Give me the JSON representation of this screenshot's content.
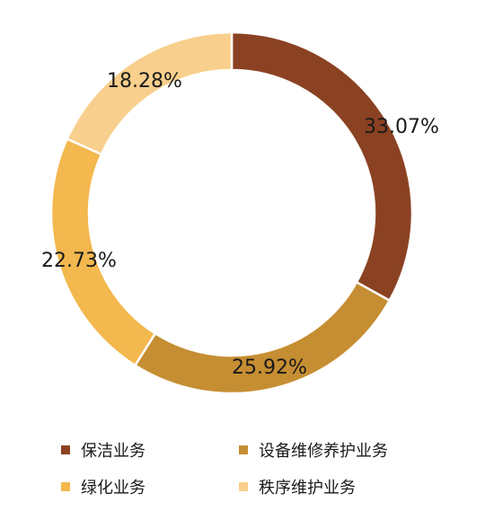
{
  "chart_data": {
    "type": "pie",
    "variant": "donut",
    "categories": [
      "保洁业务",
      "设备维修养护业务",
      "绿化业务",
      "秩序维护业务"
    ],
    "values": [
      33.07,
      25.92,
      22.73,
      18.28
    ],
    "labels": [
      "33.07%",
      "25.92%",
      "22.73%",
      "18.28%"
    ],
    "colors": [
      "#8B4223",
      "#C68E32",
      "#F3B84E",
      "#F8CF8C"
    ],
    "legend_position": "bottom",
    "start_angle": "top",
    "direction": "clockwise"
  }
}
